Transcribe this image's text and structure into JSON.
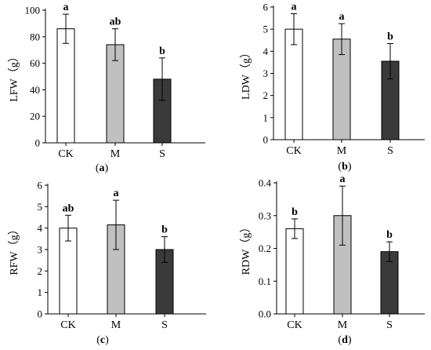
{
  "colors": {
    "CK": "#ffffff",
    "M": "#c0c0c0",
    "S": "#3a3a3a",
    "axis": "#000000"
  },
  "chart_data": [
    {
      "type": "bar",
      "panel_label": "a",
      "ylabel": "LFW（g）",
      "categories": [
        "CK",
        "M",
        "S"
      ],
      "values": [
        86,
        74,
        48
      ],
      "errors": [
        11,
        12,
        16
      ],
      "significance": [
        "a",
        "ab",
        "b"
      ],
      "ylim": [
        0,
        100
      ],
      "yticks": [
        "0",
        "20",
        "40",
        "60",
        "80",
        "100"
      ]
    },
    {
      "type": "bar",
      "panel_label": "b",
      "ylabel": "LDW（g）",
      "categories": [
        "CK",
        "M",
        "S"
      ],
      "values": [
        5.0,
        4.55,
        3.55
      ],
      "errors": [
        0.7,
        0.7,
        0.8
      ],
      "significance": [
        "a",
        "a",
        "b"
      ],
      "ylim": [
        0,
        6
      ],
      "yticks": [
        "0",
        "1",
        "2",
        "3",
        "4",
        "5",
        "6"
      ]
    },
    {
      "type": "bar",
      "panel_label": "c",
      "ylabel": "RFW（g）",
      "categories": [
        "CK",
        "M",
        "S"
      ],
      "values": [
        4.0,
        4.15,
        3.0
      ],
      "errors": [
        0.6,
        1.15,
        0.6
      ],
      "significance": [
        "ab",
        "a",
        "b"
      ],
      "ylim": [
        0,
        6
      ],
      "yticks": [
        "0",
        "1",
        "2",
        "3",
        "4",
        "5",
        "6"
      ]
    },
    {
      "type": "bar",
      "panel_label": "d",
      "ylabel": "RDW（g）",
      "categories": [
        "CK",
        "M",
        "S"
      ],
      "values": [
        0.26,
        0.3,
        0.19
      ],
      "errors": [
        0.03,
        0.09,
        0.03
      ],
      "significance": [
        "b",
        "a",
        "b"
      ],
      "ylim": [
        0,
        0.4
      ],
      "yticks": [
        "0.0",
        "0.1",
        "0.2",
        "0.3",
        "0.4"
      ]
    }
  ]
}
